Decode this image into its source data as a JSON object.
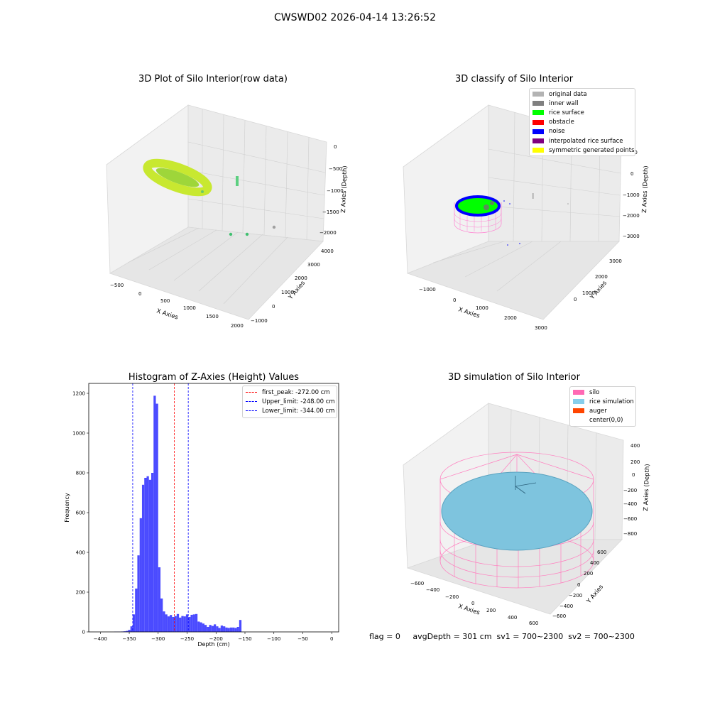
{
  "figure": {
    "suptitle": "CWSWD02 2026-04-14 13:26:52"
  },
  "panels": {
    "raw": {
      "title": "3D Plot of Silo Interior(row data)",
      "xlabel": "X Axies",
      "ylabel": "Y Axies",
      "zlabel": "Z Axies (Depth)",
      "xticks": [
        "−500",
        "0",
        "500",
        "1000",
        "1500",
        "2000"
      ],
      "yticks": [
        "−1000",
        "0",
        "1000",
        "2000",
        "3000",
        "4000"
      ],
      "zticks": [
        "0",
        "−500",
        "−1000",
        "−1500",
        "−2000"
      ]
    },
    "classify": {
      "title": "3D classify of Silo Interior",
      "xlabel": "X Axies",
      "ylabel": "Y Axies",
      "zlabel": "Z Axies (Depth)",
      "xticks": [
        "−1000",
        "0",
        "1000",
        "2000",
        "3000"
      ],
      "yticks": [
        "0",
        "1000",
        "2000",
        "3000"
      ],
      "zticks": [
        "1000",
        "0",
        "−1000",
        "−2000",
        "−3000"
      ],
      "legend": [
        {
          "label": "original data",
          "color": "#b3b3b3"
        },
        {
          "label": "inner wall",
          "color": "#808080"
        },
        {
          "label": "rice surface",
          "color": "#00ff00"
        },
        {
          "label": "obstacle",
          "color": "#ff0000"
        },
        {
          "label": "noise",
          "color": "#0000ff"
        },
        {
          "label": "interpolated rice surface",
          "color": "#800080"
        },
        {
          "label": "symmetric generated points",
          "color": "#ffff00"
        }
      ]
    },
    "histogram": {
      "title": "Histogram of Z-Axies (Height) Values",
      "xlabel": "Depth (cm)",
      "ylabel": "Frequency",
      "legend": [
        {
          "label": "first_peak: -272.00 cm",
          "color": "#ff0000"
        },
        {
          "label": "Upper_limit: -248.00 cm",
          "color": "#0000ff"
        },
        {
          "label": "Lower_limit: -344.00 cm",
          "color": "#0000ff"
        }
      ]
    },
    "simulation": {
      "title": "3D simulation of Silo Interior",
      "xlabel": "X Axies",
      "ylabel": "Y Axies",
      "zlabel": "Z Axies (Depth)",
      "xticks": [
        "−600",
        "−400",
        "−200",
        "0",
        "200",
        "400",
        "600"
      ],
      "yticks": [
        "−600",
        "−400",
        "−200",
        "0",
        "200",
        "400",
        "600"
      ],
      "zticks": [
        "400",
        "200",
        "0",
        "−200",
        "−400",
        "−600",
        "−800"
      ],
      "legend": [
        {
          "label": "silo",
          "color": "#ff69b4"
        },
        {
          "label": "rice simulation",
          "color": "#87ceeb"
        },
        {
          "label": "auger",
          "color": "#ff4500"
        },
        {
          "label": "center(0,0)",
          "color": ""
        }
      ]
    }
  },
  "footer": {
    "text": "flag = 0     avgDepth = 301 cm  sv1 = 700~2300  sv2 = 700~2300"
  },
  "chart_data": [
    {
      "type": "bar",
      "title": "Histogram of Z-Axies (Height) Values",
      "xlabel": "Depth (cm)",
      "ylabel": "Frequency",
      "xlim": [
        -420,
        12
      ],
      "ylim": [
        0,
        1250
      ],
      "xticks": [
        -400,
        -350,
        -300,
        -250,
        -200,
        -150,
        -100,
        -50,
        0
      ],
      "yticks": [
        0,
        200,
        400,
        600,
        800,
        1000,
        1200
      ],
      "bin_width": 4,
      "bins_start": [
        -376,
        -372,
        -368,
        -364,
        -360,
        -356,
        -352,
        -348,
        -344,
        -340,
        -336,
        -332,
        -328,
        -324,
        -320,
        -316,
        -312,
        -308,
        -304,
        -300,
        -296,
        -292,
        -288,
        -284,
        -280,
        -276,
        -272,
        -268,
        -264,
        -260,
        -256,
        -252,
        -248,
        -244,
        -240,
        -236,
        -232,
        -228,
        -224,
        -220,
        -216,
        -212,
        -208,
        -204,
        -200,
        -196,
        -192,
        -188,
        -184,
        -180,
        -176,
        -172,
        -168,
        -164,
        -160,
        -156,
        -152,
        -148,
        -144,
        -140,
        -136,
        -132,
        -128,
        -124,
        -120,
        -116,
        -112,
        -108,
        -104,
        -100,
        -96,
        -92,
        -88,
        -84,
        -80,
        -76,
        -72,
        -68,
        -64,
        -60,
        -56,
        -52,
        -48,
        -44,
        -40,
        -36,
        -32,
        -28,
        -24,
        -20,
        -16,
        -12,
        -8,
        -4
      ],
      "values": [
        1,
        1,
        1,
        2,
        3,
        5,
        10,
        28,
        88,
        218,
        385,
        572,
        740,
        775,
        783,
        765,
        800,
        1188,
        1148,
        325,
        168,
        103,
        88,
        78,
        85,
        75,
        80,
        90,
        72,
        80,
        78,
        88,
        75,
        86,
        88,
        90,
        52,
        48,
        42,
        35,
        25,
        35,
        30,
        38,
        28,
        20,
        32,
        28,
        22,
        20,
        22,
        22,
        20,
        25,
        60,
        0,
        0,
        0,
        0,
        0,
        0,
        0,
        0,
        0,
        0,
        0,
        0,
        0,
        0,
        0,
        0,
        0,
        0,
        0,
        0,
        0,
        0,
        0,
        0,
        0,
        0,
        0,
        0,
        0,
        0,
        0,
        0,
        0,
        0,
        0,
        0,
        0,
        0,
        0
      ],
      "vlines": [
        {
          "name": "first_peak",
          "x": -272,
          "color": "#ff0000"
        },
        {
          "name": "Upper_limit",
          "x": -248,
          "color": "#0000ff"
        },
        {
          "name": "Lower_limit",
          "x": -344,
          "color": "#0000ff"
        }
      ],
      "bar_color": "#4b4bff",
      "legend_position": "top-right"
    }
  ]
}
